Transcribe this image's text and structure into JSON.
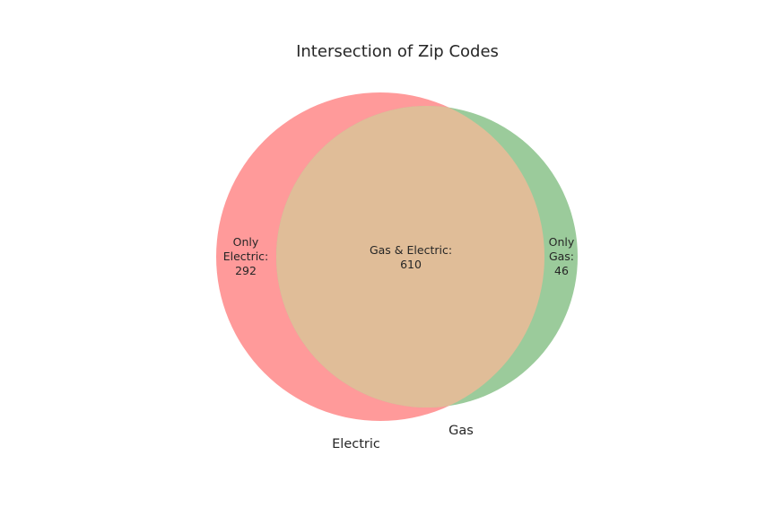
{
  "chart_data": {
    "type": "venn",
    "title": "Intersection of Zip Codes",
    "sets": [
      {
        "name": "Electric",
        "color": "#ff9a9a"
      },
      {
        "name": "Gas",
        "color": "#9bcb9b"
      }
    ],
    "intersection_color": "#e0bd98",
    "regions": [
      {
        "id": "only-electric",
        "lines": [
          "Only",
          "Electric:",
          "292"
        ],
        "value": 292
      },
      {
        "id": "gas-and-electric",
        "lines": [
          "Gas & Electric:",
          "610"
        ],
        "value": 610
      },
      {
        "id": "only-gas",
        "lines": [
          "Only",
          "Gas:",
          "46"
        ],
        "value": 46
      }
    ]
  }
}
